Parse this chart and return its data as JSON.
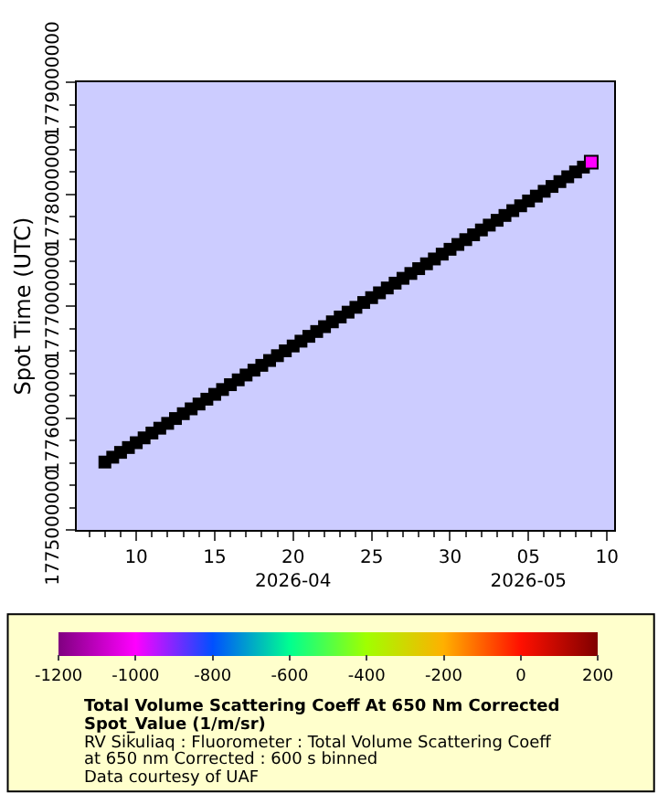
{
  "chart_data": {
    "type": "scatter",
    "ylabel": "Spot Time (UTC)",
    "clabel": "Total Volume Scattering Coeff At 650 Nm Corrected Spot_Value (1/m/sr)",
    "annotations": [
      "RV Sikuliaq : Fluorometer : Total Volume Scattering Coeff at 650 nm Corrected : 600 s binned",
      "Data courtesy of UAF"
    ],
    "series": [
      {
        "color": "#000000",
        "x": [
          "2026-04-08T00:00",
          "2026-04-08T12:00",
          "2026-04-09T00:00",
          "2026-04-09T12:00",
          "2026-04-10T00:00",
          "2026-04-10T12:00",
          "2026-04-11T00:00",
          "2026-04-11T12:00",
          "2026-04-12T00:00",
          "2026-04-12T12:00",
          "2026-04-13T00:00",
          "2026-04-13T12:00",
          "2026-04-14T00:00",
          "2026-04-14T12:00",
          "2026-04-15T00:00",
          "2026-04-15T12:00",
          "2026-04-16T00:00",
          "2026-04-16T12:00",
          "2026-04-17T00:00",
          "2026-04-17T12:00",
          "2026-04-18T00:00",
          "2026-04-18T12:00",
          "2026-04-19T00:00",
          "2026-04-19T12:00",
          "2026-04-20T00:00",
          "2026-04-20T12:00",
          "2026-04-21T00:00",
          "2026-04-21T12:00",
          "2026-04-22T00:00",
          "2026-04-22T12:00",
          "2026-04-23T00:00",
          "2026-04-23T12:00",
          "2026-04-24T00:00",
          "2026-04-24T12:00",
          "2026-04-25T00:00",
          "2026-04-25T12:00",
          "2026-04-26T00:00",
          "2026-04-26T12:00",
          "2026-04-27T00:00",
          "2026-04-27T12:00",
          "2026-04-28T00:00",
          "2026-04-28T12:00",
          "2026-04-29T00:00",
          "2026-04-29T12:00",
          "2026-04-30T00:00",
          "2026-04-30T12:00",
          "2026-05-01T00:00",
          "2026-05-01T12:00",
          "2026-05-02T00:00",
          "2026-05-02T12:00",
          "2026-05-03T00:00",
          "2026-05-03T12:00",
          "2026-05-04T00:00",
          "2026-05-04T12:00",
          "2026-05-05T00:00",
          "2026-05-05T12:00",
          "2026-05-06T00:00",
          "2026-05-06T12:00",
          "2026-05-07T00:00",
          "2026-05-07T12:00",
          "2026-05-08T00:00",
          "2026-05-08T12:00"
        ],
        "values": [
          1775606400,
          1775649600,
          1775692800,
          1775736000,
          1775779200,
          1775822400,
          1775865600,
          1775908800,
          1775952000,
          1775995200,
          1776038400,
          1776081600,
          1776124800,
          1776168000,
          1776211200,
          1776254400,
          1776297600,
          1776340800,
          1776384000,
          1776427200,
          1776470400,
          1776513600,
          1776556800,
          1776600000,
          1776643200,
          1776686400,
          1776729600,
          1776772800,
          1776816000,
          1776859200,
          1776902400,
          1776945600,
          1776988800,
          1777032000,
          1777075200,
          1777118400,
          1777161600,
          1777204800,
          1777248000,
          1777291200,
          1777334400,
          1777377600,
          1777420800,
          1777464000,
          1777507200,
          1777550400,
          1777593600,
          1777636800,
          1777680000,
          1777723200,
          1777766400,
          1777809600,
          1777852800,
          1777896000,
          1777939200,
          1777982400,
          1778025600,
          1778068800,
          1778112000,
          1778155200,
          1778198400,
          1778241600
        ]
      },
      {
        "x": [
          "2026-05-09T00:00"
        ],
        "values": [
          1778284800
        ],
        "cvalues": [
          -1000
        ]
      }
    ],
    "xlim": [
      "2026-04-06T05:00",
      "2026-05-10T11:00"
    ],
    "xticks": [
      {
        "value": "2026-04-10",
        "label": "10"
      },
      {
        "value": "2026-04-15",
        "label": "15"
      },
      {
        "value": "2026-04-20",
        "label": "20\n2026-04"
      },
      {
        "value": "2026-04-25",
        "label": "25"
      },
      {
        "value": "2026-04-30",
        "label": "30"
      },
      {
        "value": "2026-05-05",
        "label": "05\n2026-05"
      },
      {
        "value": "2026-05-10",
        "label": "10"
      }
    ],
    "ylim": [
      1775000000,
      1779000000
    ],
    "yticks": [
      1775000000,
      1776000000,
      1777000000,
      1778000000,
      1779000000
    ],
    "clim": [
      -1200,
      200
    ],
    "cticks": [
      -1200,
      -1000,
      -800,
      -600,
      -400,
      -200,
      0,
      200
    ],
    "marker": "square",
    "grid": false
  }
}
